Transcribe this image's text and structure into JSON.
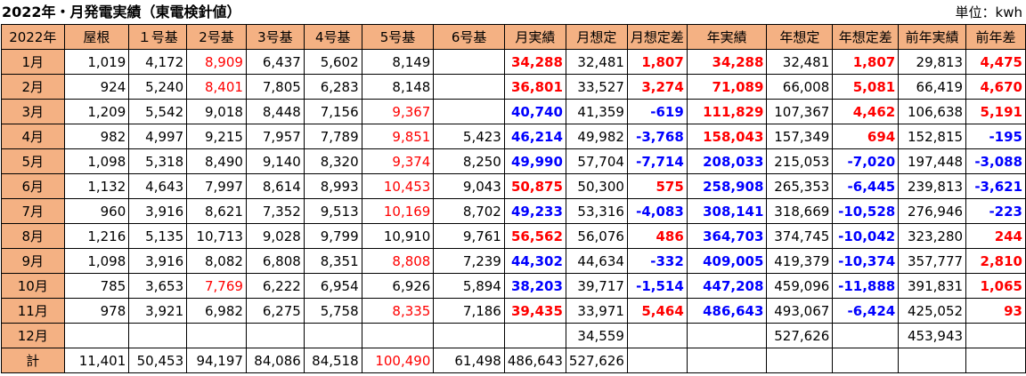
{
  "title": "2022年・月発電実績（東電検針値）",
  "unit": "単位：kwh",
  "headers": [
    "2022年",
    "屋根",
    "１号基",
    "2号基",
    "3号基",
    "4号基",
    "5号基",
    "6号基",
    "月実績",
    "月想定",
    "月想定差",
    "年実績",
    "年想定",
    "年想定差",
    "前年実績",
    "前年差"
  ],
  "colors": {
    "header_bg": "#f4b183",
    "red": "#ff0000",
    "blue": "#0000ff"
  },
  "rows": [
    {
      "label": "1月",
      "cells": [
        {
          "v": "1,019"
        },
        {
          "v": "4,172"
        },
        {
          "v": "8,909",
          "s": "red"
        },
        {
          "v": "6,437"
        },
        {
          "v": "5,602"
        },
        {
          "v": "8,149"
        },
        {
          "v": ""
        },
        {
          "v": "34,288",
          "s": "bred"
        },
        {
          "v": "32,481"
        },
        {
          "v": "1,807",
          "s": "bred"
        },
        {
          "v": "34,288",
          "s": "bred"
        },
        {
          "v": "32,481"
        },
        {
          "v": "1,807",
          "s": "bred"
        },
        {
          "v": "29,813"
        },
        {
          "v": "4,475",
          "s": "bred"
        }
      ]
    },
    {
      "label": "2月",
      "cells": [
        {
          "v": "924"
        },
        {
          "v": "5,240"
        },
        {
          "v": "8,401",
          "s": "red"
        },
        {
          "v": "7,805"
        },
        {
          "v": "6,283"
        },
        {
          "v": "8,148"
        },
        {
          "v": ""
        },
        {
          "v": "36,801",
          "s": "bred"
        },
        {
          "v": "33,527"
        },
        {
          "v": "3,274",
          "s": "bred"
        },
        {
          "v": "71,089",
          "s": "bred"
        },
        {
          "v": "66,008"
        },
        {
          "v": "5,081",
          "s": "bred"
        },
        {
          "v": "66,419"
        },
        {
          "v": "4,670",
          "s": "bred"
        }
      ]
    },
    {
      "label": "3月",
      "cells": [
        {
          "v": "1,209"
        },
        {
          "v": "5,542"
        },
        {
          "v": "9,018"
        },
        {
          "v": "8,448"
        },
        {
          "v": "7,156"
        },
        {
          "v": "9,367",
          "s": "red"
        },
        {
          "v": ""
        },
        {
          "v": "40,740",
          "s": "bblue"
        },
        {
          "v": "41,359"
        },
        {
          "v": "-619",
          "s": "bblue"
        },
        {
          "v": "111,829",
          "s": "bred"
        },
        {
          "v": "107,367"
        },
        {
          "v": "4,462",
          "s": "bred"
        },
        {
          "v": "106,638"
        },
        {
          "v": "5,191",
          "s": "bred"
        }
      ]
    },
    {
      "label": "4月",
      "cells": [
        {
          "v": "982"
        },
        {
          "v": "4,997"
        },
        {
          "v": "9,215"
        },
        {
          "v": "7,957"
        },
        {
          "v": "7,789"
        },
        {
          "v": "9,851",
          "s": "red"
        },
        {
          "v": "5,423"
        },
        {
          "v": "46,214",
          "s": "bblue"
        },
        {
          "v": "49,982"
        },
        {
          "v": "-3,768",
          "s": "bblue"
        },
        {
          "v": "158,043",
          "s": "bred"
        },
        {
          "v": "157,349"
        },
        {
          "v": "694",
          "s": "bred"
        },
        {
          "v": "152,815"
        },
        {
          "v": "-195",
          "s": "bblue"
        }
      ]
    },
    {
      "label": "5月",
      "cells": [
        {
          "v": "1,098"
        },
        {
          "v": "5,318"
        },
        {
          "v": "8,490"
        },
        {
          "v": "9,140"
        },
        {
          "v": "8,320"
        },
        {
          "v": "9,374",
          "s": "red"
        },
        {
          "v": "8,250"
        },
        {
          "v": "49,990",
          "s": "bblue"
        },
        {
          "v": "57,704"
        },
        {
          "v": "-7,714",
          "s": "bblue"
        },
        {
          "v": "208,033",
          "s": "bblue"
        },
        {
          "v": "215,053"
        },
        {
          "v": "-7,020",
          "s": "bblue"
        },
        {
          "v": "197,448"
        },
        {
          "v": "-3,088",
          "s": "bblue"
        }
      ]
    },
    {
      "label": "6月",
      "cells": [
        {
          "v": "1,132"
        },
        {
          "v": "4,643"
        },
        {
          "v": "7,997"
        },
        {
          "v": "8,614"
        },
        {
          "v": "8,993"
        },
        {
          "v": "10,453",
          "s": "red"
        },
        {
          "v": "9,043"
        },
        {
          "v": "50,875",
          "s": "bred"
        },
        {
          "v": "50,300"
        },
        {
          "v": "575",
          "s": "bred"
        },
        {
          "v": "258,908",
          "s": "bblue"
        },
        {
          "v": "265,353"
        },
        {
          "v": "-6,445",
          "s": "bblue"
        },
        {
          "v": "239,813"
        },
        {
          "v": "-3,621",
          "s": "bblue"
        }
      ]
    },
    {
      "label": "7月",
      "cells": [
        {
          "v": "960"
        },
        {
          "v": "3,916"
        },
        {
          "v": "8,621"
        },
        {
          "v": "7,352"
        },
        {
          "v": "9,513"
        },
        {
          "v": "10,169",
          "s": "red"
        },
        {
          "v": "8,702"
        },
        {
          "v": "49,233",
          "s": "bblue"
        },
        {
          "v": "53,316"
        },
        {
          "v": "-4,083",
          "s": "bblue"
        },
        {
          "v": "308,141",
          "s": "bblue"
        },
        {
          "v": "318,669"
        },
        {
          "v": "-10,528",
          "s": "bblue"
        },
        {
          "v": "276,946"
        },
        {
          "v": "-223",
          "s": "bblue"
        }
      ]
    },
    {
      "label": "8月",
      "cells": [
        {
          "v": "1,216"
        },
        {
          "v": "5,135"
        },
        {
          "v": "10,713"
        },
        {
          "v": "9,028"
        },
        {
          "v": "9,799"
        },
        {
          "v": "10,910"
        },
        {
          "v": "9,761"
        },
        {
          "v": "56,562",
          "s": "bred"
        },
        {
          "v": "56,076"
        },
        {
          "v": "486",
          "s": "bred"
        },
        {
          "v": "364,703",
          "s": "bblue"
        },
        {
          "v": "374,745"
        },
        {
          "v": "-10,042",
          "s": "bblue"
        },
        {
          "v": "323,280"
        },
        {
          "v": "244",
          "s": "bred"
        }
      ]
    },
    {
      "label": "9月",
      "cells": [
        {
          "v": "1,098"
        },
        {
          "v": "3,916"
        },
        {
          "v": "8,082"
        },
        {
          "v": "6,808"
        },
        {
          "v": "8,351"
        },
        {
          "v": "8,808",
          "s": "red"
        },
        {
          "v": "7,239"
        },
        {
          "v": "44,302",
          "s": "bblue"
        },
        {
          "v": "44,634"
        },
        {
          "v": "-332",
          "s": "bblue"
        },
        {
          "v": "409,005",
          "s": "bblue"
        },
        {
          "v": "419,379"
        },
        {
          "v": "-10,374",
          "s": "bblue"
        },
        {
          "v": "357,777"
        },
        {
          "v": "2,810",
          "s": "bred"
        }
      ]
    },
    {
      "label": "10月",
      "cells": [
        {
          "v": "785"
        },
        {
          "v": "3,653"
        },
        {
          "v": "7,769",
          "s": "red"
        },
        {
          "v": "6,222"
        },
        {
          "v": "6,954"
        },
        {
          "v": "6,926"
        },
        {
          "v": "5,894"
        },
        {
          "v": "38,203",
          "s": "bblue"
        },
        {
          "v": "39,717"
        },
        {
          "v": "-1,514",
          "s": "bblue"
        },
        {
          "v": "447,208",
          "s": "bblue"
        },
        {
          "v": "459,096"
        },
        {
          "v": "-11,888",
          "s": "bblue"
        },
        {
          "v": "391,831"
        },
        {
          "v": "1,065",
          "s": "bred"
        }
      ]
    },
    {
      "label": "11月",
      "cells": [
        {
          "v": "978"
        },
        {
          "v": "3,921"
        },
        {
          "v": "6,982"
        },
        {
          "v": "6,275"
        },
        {
          "v": "5,758"
        },
        {
          "v": "8,335",
          "s": "red"
        },
        {
          "v": "7,186"
        },
        {
          "v": "39,435",
          "s": "bred"
        },
        {
          "v": "33,971"
        },
        {
          "v": "5,464",
          "s": "bred"
        },
        {
          "v": "486,643",
          "s": "bblue"
        },
        {
          "v": "493,067"
        },
        {
          "v": "-6,424",
          "s": "bblue"
        },
        {
          "v": "425,052"
        },
        {
          "v": "93",
          "s": "bred"
        }
      ]
    },
    {
      "label": "12月",
      "cells": [
        {
          "v": ""
        },
        {
          "v": ""
        },
        {
          "v": ""
        },
        {
          "v": ""
        },
        {
          "v": ""
        },
        {
          "v": ""
        },
        {
          "v": ""
        },
        {
          "v": ""
        },
        {
          "v": "34,559"
        },
        {
          "v": ""
        },
        {
          "v": ""
        },
        {
          "v": "527,626"
        },
        {
          "v": ""
        },
        {
          "v": "453,943"
        },
        {
          "v": ""
        }
      ]
    },
    {
      "label": "計",
      "cells": [
        {
          "v": "11,401"
        },
        {
          "v": "50,453"
        },
        {
          "v": "94,197"
        },
        {
          "v": "84,086"
        },
        {
          "v": "84,518"
        },
        {
          "v": "100,490",
          "s": "red"
        },
        {
          "v": "61,498"
        },
        {
          "v": "486,643"
        },
        {
          "v": "527,626"
        },
        {
          "v": ""
        },
        {
          "v": ""
        },
        {
          "v": ""
        },
        {
          "v": ""
        },
        {
          "v": ""
        },
        {
          "v": ""
        }
      ]
    }
  ]
}
